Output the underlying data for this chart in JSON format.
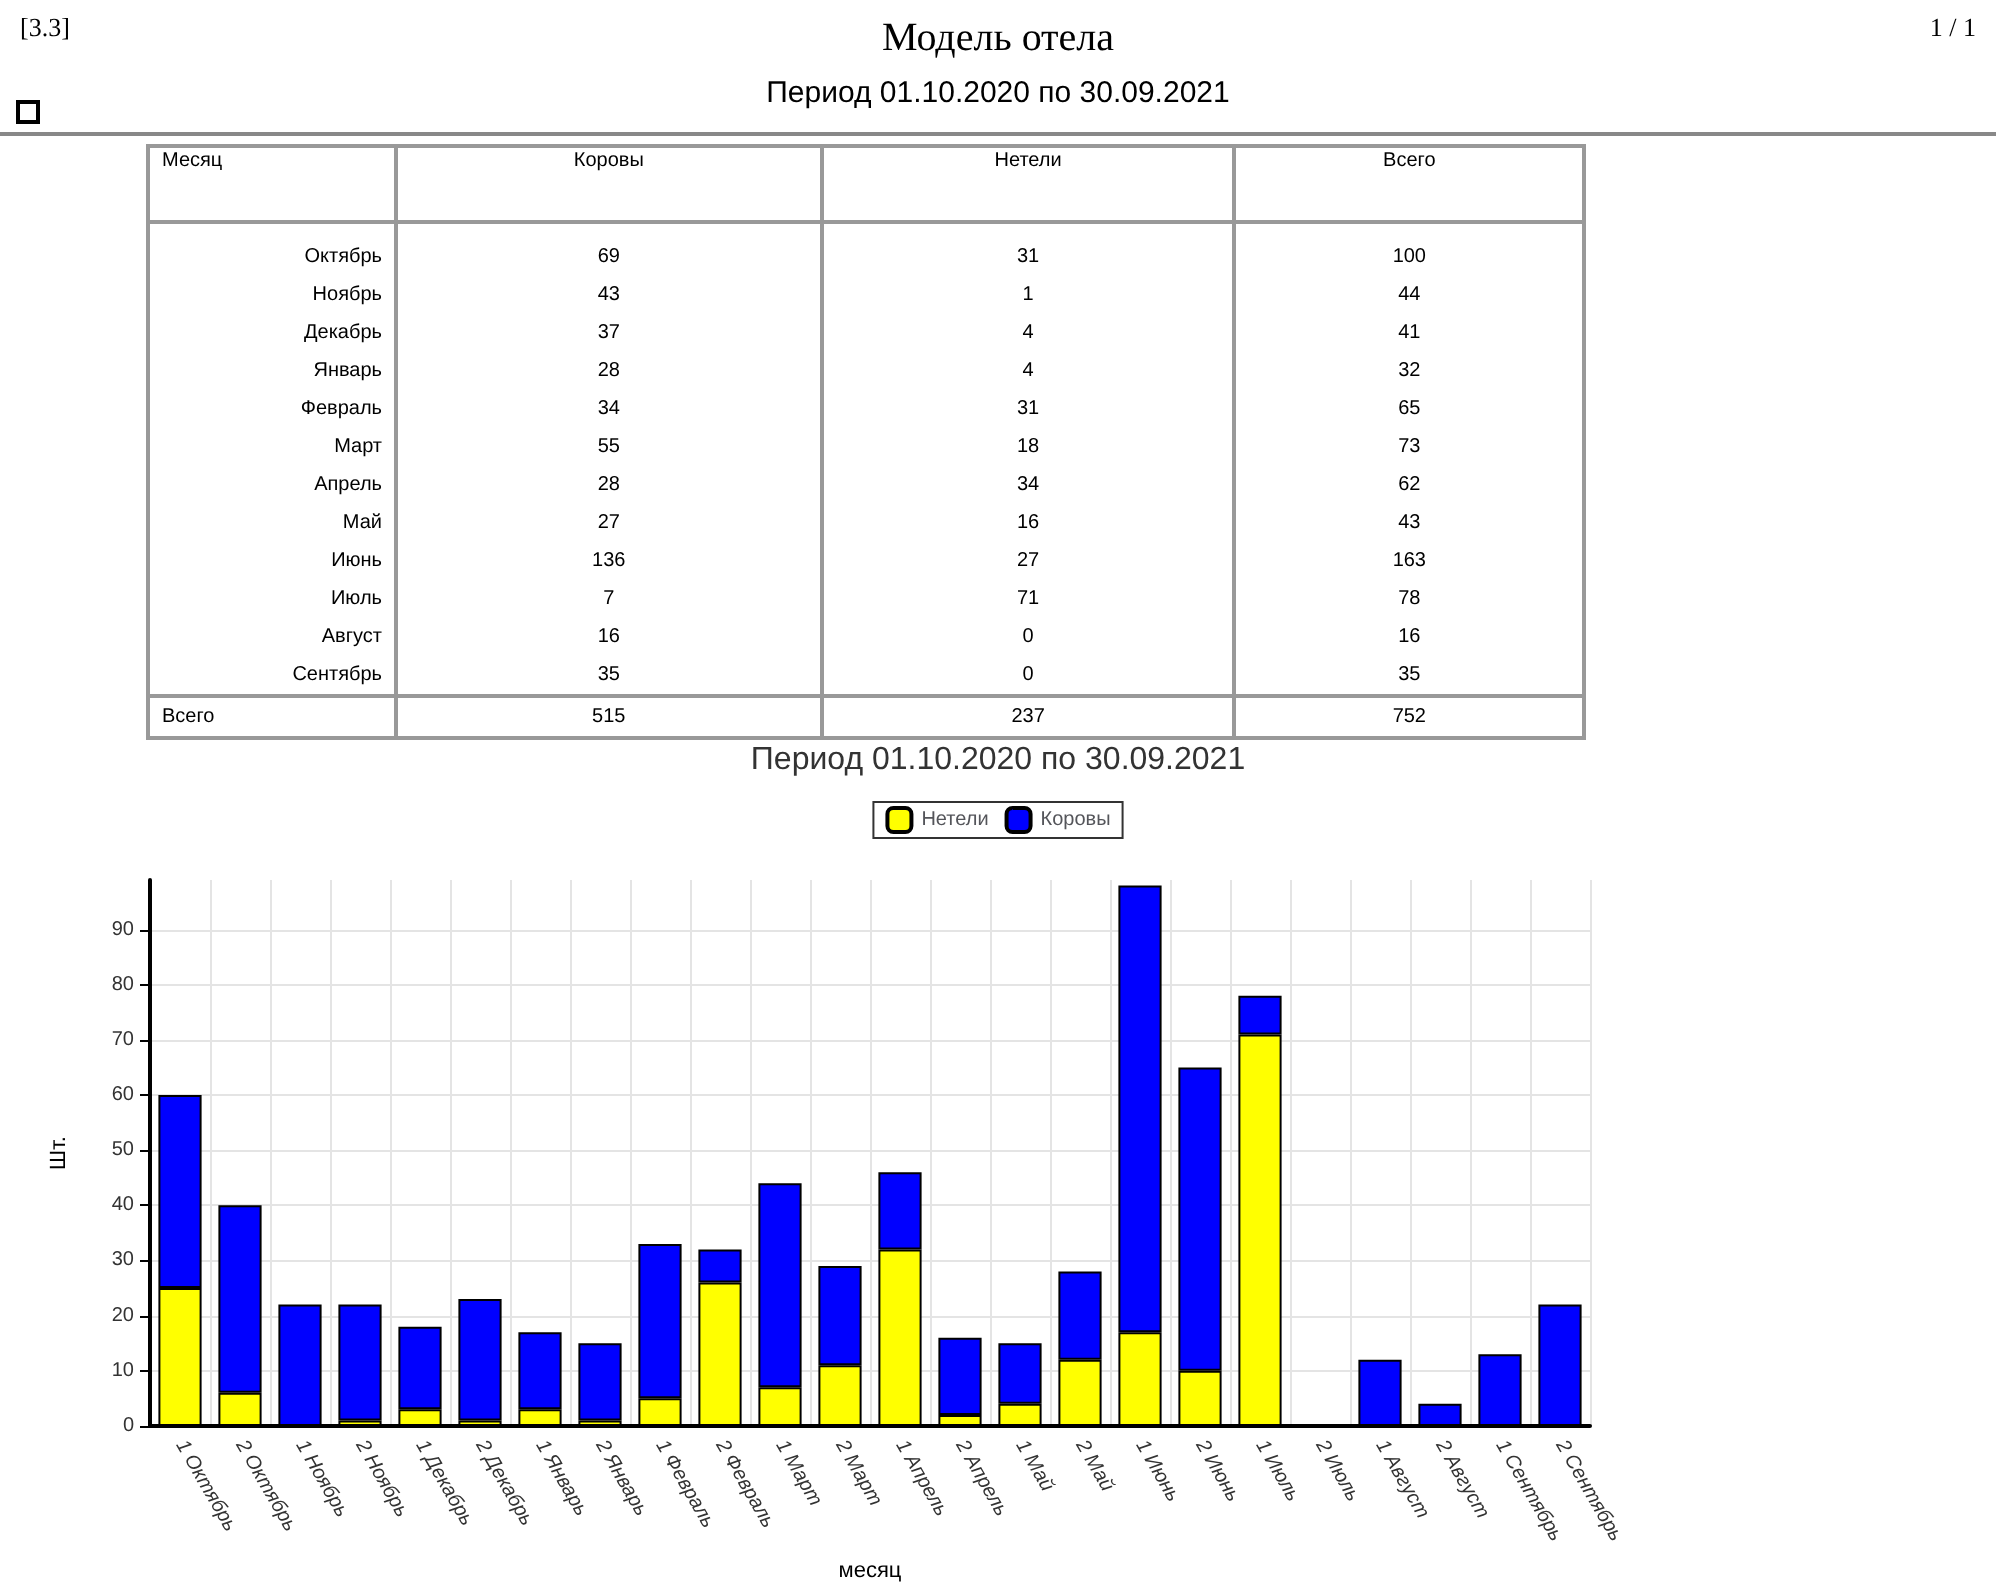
{
  "chart_data": [
    {
      "type": "other",
      "title": "Модель отела",
      "subtitle": "Период 01.10.2020 по 30.09.2021",
      "annotations": [
        "[3.3]",
        "1 / 1"
      ],
      "xlabel": "Месяц",
      "categories": [
        "Октябрь",
        "Ноябрь",
        "Декабрь",
        "Январь",
        "Февраль",
        "Март",
        "Апрель",
        "Май",
        "Июнь",
        "Июль",
        "Август",
        "Сентябрь",
        "Всего"
      ],
      "series": [
        {
          "name": "Коровы",
          "values": [
            69,
            43,
            37,
            28,
            34,
            55,
            28,
            27,
            136,
            7,
            16,
            35,
            515
          ]
        },
        {
          "name": "Нетели",
          "values": [
            31,
            1,
            4,
            4,
            31,
            18,
            34,
            16,
            27,
            71,
            0,
            0,
            237
          ]
        },
        {
          "name": "Всего",
          "values": [
            100,
            44,
            41,
            32,
            65,
            73,
            62,
            43,
            163,
            78,
            16,
            35,
            752
          ]
        }
      ],
      "data_labels": true
    },
    {
      "type": "bar",
      "title": "Период 01.10.2020 по 30.09.2021",
      "xlabel": "месяц",
      "ylabel": "Шт.",
      "stacked": true,
      "grid": true,
      "legend": "top",
      "categories": [
        "1 Октябрь",
        "2 Октябрь",
        "1 Ноябрь",
        "2 Ноябрь",
        "1 Декабрь",
        "2 Декабрь",
        "1 Январь",
        "2 Январь",
        "1 Февраль",
        "2 Февраль",
        "1 Март",
        "2 Март",
        "1 Апрель",
        "2 Апрель",
        "1 Май",
        "2 Май",
        "1 Июнь",
        "2 Июнь",
        "1 Июль",
        "2 Июль",
        "1 Август",
        "2 Август",
        "1 Сентябрь",
        "2 Сентябрь"
      ],
      "ylim": [
        0,
        99
      ],
      "yticks": [
        0,
        10,
        20,
        30,
        40,
        50,
        60,
        70,
        80,
        90
      ],
      "series": [
        {
          "name": "Нетели",
          "color": "#ffff00",
          "values": [
            25,
            6,
            0,
            1,
            3,
            1,
            3,
            1,
            5,
            26,
            7,
            11,
            32,
            2,
            4,
            12,
            17,
            10,
            71,
            0,
            0,
            0,
            0,
            0
          ]
        },
        {
          "name": "Коровы",
          "color": "#0000ff",
          "values": [
            35,
            34,
            22,
            21,
            15,
            22,
            14,
            14,
            28,
            6,
            37,
            18,
            14,
            14,
            11,
            16,
            81,
            55,
            7,
            0,
            12,
            4,
            13,
            22
          ]
        }
      ]
    }
  ]
}
